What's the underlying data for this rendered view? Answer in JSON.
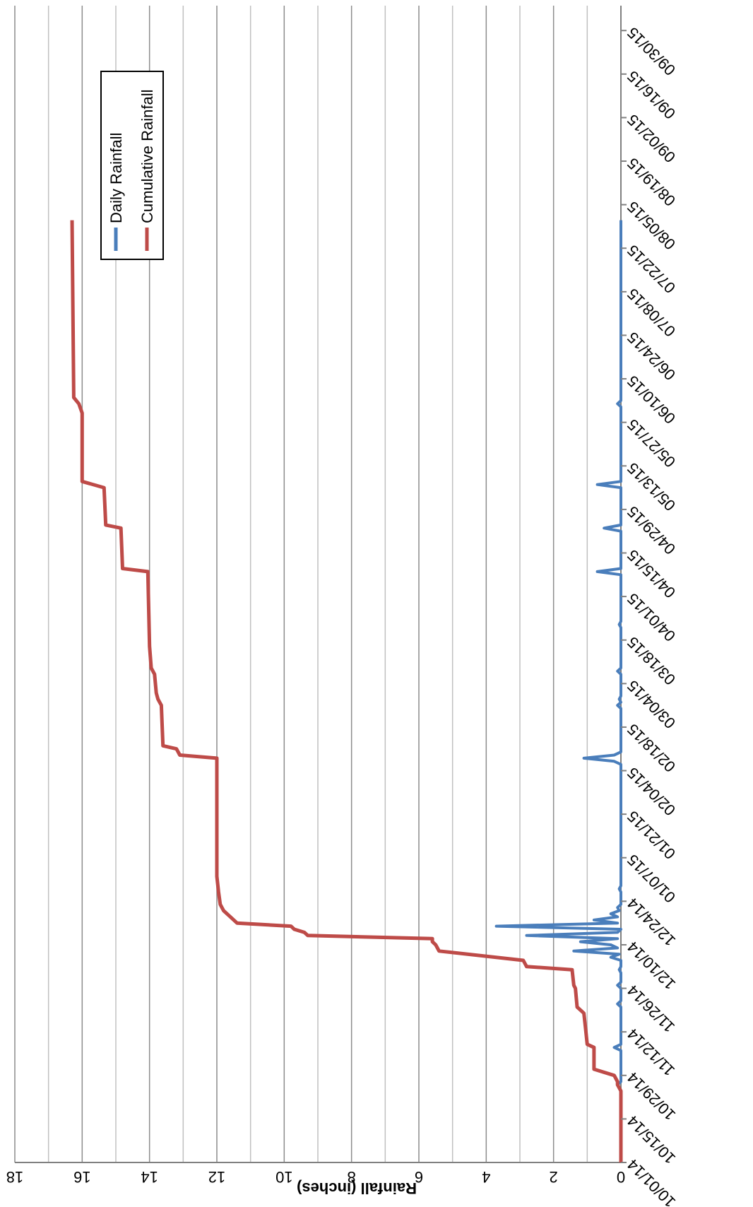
{
  "chart_data": {
    "type": "line",
    "title": "",
    "ylabel": "Rainfall (inches)",
    "xlabel": "",
    "x_tick_labels": [
      "10/01/14",
      "10/15/14",
      "10/29/14",
      "11/12/14",
      "11/26/14",
      "12/10/14",
      "12/24/14",
      "01/07/15",
      "01/21/15",
      "02/04/15",
      "02/18/15",
      "03/04/15",
      "03/18/15",
      "04/01/15",
      "04/15/15",
      "04/29/15",
      "05/13/15",
      "05/27/15",
      "06/10/15",
      "06/24/15",
      "07/08/15",
      "07/22/15",
      "08/05/15",
      "08/19/15",
      "09/02/15",
      "09/16/15",
      "09/30/15"
    ],
    "y_tick_labels": [
      "0",
      "2",
      "4",
      "6",
      "8",
      "10",
      "12",
      "14",
      "16",
      "18"
    ],
    "ylim": [
      0,
      18
    ],
    "xlim": [
      "10/01/14",
      "09/30/15"
    ],
    "grid": true,
    "legend_placement": "upper-left of plot (rotated view)",
    "rotation": "chart rendered rotated 90 degrees clockwise",
    "series": [
      {
        "name": "Daily Rainfall",
        "color": "#4A7EBB",
        "points": [
          [
            "10/01/14",
            0
          ],
          [
            "10/24/14",
            0
          ],
          [
            "10/26/14",
            0.1
          ],
          [
            "10/27/14",
            0
          ],
          [
            "11/06/14",
            0
          ],
          [
            "11/07/14",
            0.2
          ],
          [
            "11/08/14",
            0
          ],
          [
            "11/20/14",
            0
          ],
          [
            "11/21/14",
            0.1
          ],
          [
            "11/22/14",
            0
          ],
          [
            "11/26/14",
            0
          ],
          [
            "11/27/14",
            0.1
          ],
          [
            "11/28/14",
            0
          ],
          [
            "12/01/14",
            0
          ],
          [
            "12/02/14",
            0.05
          ],
          [
            "12/03/14",
            0
          ],
          [
            "12/05/14",
            0
          ],
          [
            "12/06/14",
            0.3
          ],
          [
            "12/07/14",
            0.05
          ],
          [
            "12/08/14",
            1.4
          ],
          [
            "12/09/14",
            0.1
          ],
          [
            "12/10/14",
            0.3
          ],
          [
            "12/11/14",
            1.2
          ],
          [
            "12/12/14",
            0.1
          ],
          [
            "12/13/14",
            2.8
          ],
          [
            "12/14/14",
            0.1
          ],
          [
            "12/15/14",
            0
          ],
          [
            "12/16/14",
            3.7
          ],
          [
            "12/17/14",
            0.1
          ],
          [
            "12/18/14",
            0.8
          ],
          [
            "12/19/14",
            0.1
          ],
          [
            "12/20/14",
            0.3
          ],
          [
            "12/21/14",
            0.05
          ],
          [
            "12/22/14",
            0.1
          ],
          [
            "12/23/14",
            0
          ],
          [
            "12/27/14",
            0
          ],
          [
            "12/28/14",
            0.05
          ],
          [
            "12/29/14",
            0
          ],
          [
            "02/06/15",
            0
          ],
          [
            "02/07/15",
            0.2
          ],
          [
            "02/08/15",
            1.1
          ],
          [
            "02/09/15",
            0.2
          ],
          [
            "02/10/15",
            0
          ],
          [
            "02/24/15",
            0
          ],
          [
            "02/25/15",
            0.1
          ],
          [
            "02/26/15",
            0
          ],
          [
            "02/27/15",
            0.05
          ],
          [
            "02/28/15",
            0
          ],
          [
            "03/07/15",
            0
          ],
          [
            "03/08/15",
            0.1
          ],
          [
            "03/09/15",
            0
          ],
          [
            "03/22/15",
            0
          ],
          [
            "03/23/15",
            0.05
          ],
          [
            "03/24/15",
            0
          ],
          [
            "04/08/15",
            0
          ],
          [
            "04/09/15",
            0.7
          ],
          [
            "04/10/15",
            0
          ],
          [
            "04/22/15",
            0
          ],
          [
            "04/23/15",
            0.5
          ],
          [
            "04/24/15",
            0
          ],
          [
            "05/06/15",
            0
          ],
          [
            "05/07/15",
            0.7
          ],
          [
            "05/08/15",
            0
          ],
          [
            "06/01/15",
            0
          ],
          [
            "06/02/15",
            0.1
          ],
          [
            "06/03/15",
            0
          ],
          [
            "07/31/15",
            0
          ]
        ]
      },
      {
        "name": "Cumulative Rainfall",
        "color": "#BE4B48",
        "points": [
          [
            "10/01/14",
            0
          ],
          [
            "10/24/14",
            0
          ],
          [
            "10/26/14",
            0.1
          ],
          [
            "10/27/14",
            0.1
          ],
          [
            "10/29/14",
            0.2
          ],
          [
            "10/31/14",
            0.8
          ],
          [
            "11/06/14",
            0.8
          ],
          [
            "11/07/14",
            0.8
          ],
          [
            "11/08/14",
            1.0
          ],
          [
            "11/13/14",
            1.05
          ],
          [
            "11/18/14",
            1.1
          ],
          [
            "11/19/14",
            1.2
          ],
          [
            "11/20/14",
            1.3
          ],
          [
            "11/26/14",
            1.35
          ],
          [
            "11/27/14",
            1.4
          ],
          [
            "12/02/14",
            1.45
          ],
          [
            "12/03/14",
            2.8
          ],
          [
            "12/05/14",
            2.9
          ],
          [
            "12/08/14",
            5.4
          ],
          [
            "12/10/14",
            5.5
          ],
          [
            "12/11/14",
            5.6
          ],
          [
            "12/12/14",
            5.6
          ],
          [
            "12/13/14",
            9.3
          ],
          [
            "12/14/14",
            9.4
          ],
          [
            "12/15/14",
            9.7
          ],
          [
            "12/16/14",
            9.8
          ],
          [
            "12/17/14",
            11.4
          ],
          [
            "12/19/14",
            11.6
          ],
          [
            "12/21/14",
            11.8
          ],
          [
            "12/23/14",
            11.9
          ],
          [
            "12/27/14",
            11.95
          ],
          [
            "01/01/15",
            12.0
          ],
          [
            "02/08/15",
            12.0
          ],
          [
            "02/09/15",
            13.1
          ],
          [
            "02/11/15",
            13.2
          ],
          [
            "02/12/15",
            13.6
          ],
          [
            "02/25/15",
            13.65
          ],
          [
            "02/27/15",
            13.75
          ],
          [
            "03/01/15",
            13.8
          ],
          [
            "03/07/15",
            13.85
          ],
          [
            "03/09/15",
            13.95
          ],
          [
            "03/16/15",
            14.0
          ],
          [
            "04/09/15",
            14.05
          ],
          [
            "04/10/15",
            14.8
          ],
          [
            "04/23/15",
            14.85
          ],
          [
            "04/24/15",
            15.3
          ],
          [
            "05/06/15",
            15.35
          ],
          [
            "05/08/15",
            16.0
          ],
          [
            "05/30/15",
            16.0
          ],
          [
            "06/02/15",
            16.1
          ],
          [
            "06/04/15",
            16.25
          ],
          [
            "07/31/15",
            16.3
          ]
        ]
      }
    ]
  }
}
